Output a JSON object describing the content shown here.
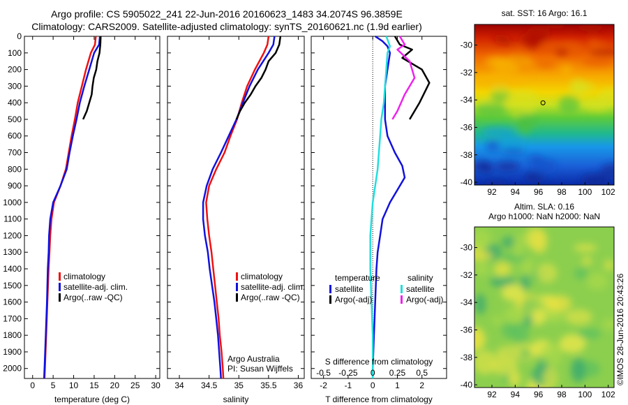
{
  "header": {
    "line1": "Argo profile: CS 5905022_241 22-Jun-2016 20160623_1483 34.2074S 96.3859E",
    "line2": "Climatology: CARS2009. Satellite-adjusted climatology: synTS_20160621.nc (1.9d earlier)"
  },
  "colors": {
    "climatology": "#ee1111",
    "satellite": "#1111dd",
    "argo": "#000000",
    "satellite_s": "#22dddd",
    "argo_s": "#ee22ee"
  },
  "chart_data": [
    {
      "id": "temperature",
      "type": "line",
      "xlabel": "temperature (deg C)",
      "xlim": [
        -2,
        31
      ],
      "ylim": [
        0,
        2060
      ],
      "y_inverted": true,
      "xticks": [
        0,
        5,
        10,
        15,
        20,
        25,
        30
      ],
      "yticks": [
        0,
        100,
        200,
        300,
        400,
        500,
        600,
        700,
        800,
        900,
        1000,
        1100,
        1200,
        1300,
        1400,
        1500,
        1600,
        1700,
        1800,
        1900,
        2000
      ],
      "legend": [
        "climatology",
        "satellite-adj. clim.",
        "Argo(..raw -QC)"
      ],
      "series": [
        {
          "name": "climatology",
          "color": "#ee1111",
          "points": [
            [
              15.4,
              0
            ],
            [
              15.2,
              50
            ],
            [
              14.2,
              100
            ],
            [
              13,
              200
            ],
            [
              12,
              300
            ],
            [
              11,
              400
            ],
            [
              10.3,
              500
            ],
            [
              9.5,
              600
            ],
            [
              8.8,
              700
            ],
            [
              8.1,
              800
            ],
            [
              6.8,
              900
            ],
            [
              5.2,
              1000
            ],
            [
              4.6,
              1100
            ],
            [
              4.3,
              1200
            ],
            [
              4.1,
              1300
            ],
            [
              3.9,
              1400
            ],
            [
              3.6,
              1600
            ],
            [
              3.3,
              1800
            ],
            [
              3.0,
              2000
            ],
            [
              2.9,
              2060
            ]
          ]
        },
        {
          "name": "satellite-adj. clim.",
          "color": "#1111dd",
          "points": [
            [
              16.4,
              0
            ],
            [
              16.2,
              50
            ],
            [
              15,
              100
            ],
            [
              13.8,
              200
            ],
            [
              12.6,
              300
            ],
            [
              11.5,
              400
            ],
            [
              10.7,
              500
            ],
            [
              9.8,
              600
            ],
            [
              9.0,
              700
            ],
            [
              8.3,
              800
            ],
            [
              6.8,
              900
            ],
            [
              5.0,
              1000
            ],
            [
              4.3,
              1100
            ],
            [
              4.0,
              1200
            ],
            [
              3.9,
              1300
            ],
            [
              3.7,
              1400
            ],
            [
              3.5,
              1600
            ],
            [
              3.2,
              1800
            ],
            [
              2.9,
              2000
            ],
            [
              2.8,
              2060
            ]
          ]
        },
        {
          "name": "Argo(..raw -QC)",
          "color": "#000000",
          "points": [
            [
              16.6,
              0
            ],
            [
              16.5,
              50
            ],
            [
              16.3,
              100
            ],
            [
              15.8,
              150
            ],
            [
              15.5,
              200
            ],
            [
              14.9,
              250
            ],
            [
              14.6,
              300
            ],
            [
              14.4,
              350
            ],
            [
              13.8,
              400
            ],
            [
              13.2,
              450
            ],
            [
              12.3,
              500
            ]
          ]
        }
      ]
    },
    {
      "id": "salinity",
      "type": "line",
      "xlabel": "salinity",
      "xlim": [
        33.8,
        36.1
      ],
      "ylim": [
        0,
        2060
      ],
      "y_inverted": true,
      "xticks": [
        34,
        34.5,
        35,
        35.5,
        36
      ],
      "legend": [
        "climatology",
        "satellite-adj. clim.",
        "Argo(..raw -QC)"
      ],
      "notes": [
        "Argo Australia",
        "PI: Susan Wijffels"
      ],
      "series": [
        {
          "name": "climatology",
          "color": "#ee1111",
          "points": [
            [
              35.5,
              0
            ],
            [
              35.48,
              50
            ],
            [
              35.42,
              100
            ],
            [
              35.27,
              200
            ],
            [
              35.14,
              300
            ],
            [
              35.05,
              400
            ],
            [
              34.97,
              500
            ],
            [
              34.86,
              600
            ],
            [
              34.76,
              700
            ],
            [
              34.62,
              800
            ],
            [
              34.5,
              900
            ],
            [
              34.45,
              1000
            ],
            [
              34.47,
              1100
            ],
            [
              34.5,
              1200
            ],
            [
              34.54,
              1300
            ],
            [
              34.57,
              1400
            ],
            [
              34.6,
              1500
            ],
            [
              34.63,
              1600
            ],
            [
              34.66,
              1700
            ],
            [
              34.68,
              1800
            ],
            [
              34.71,
              1900
            ],
            [
              34.73,
              2000
            ],
            [
              34.74,
              2060
            ]
          ]
        },
        {
          "name": "satellite-adj. clim.",
          "color": "#1111dd",
          "points": [
            [
              35.6,
              0
            ],
            [
              35.58,
              50
            ],
            [
              35.5,
              100
            ],
            [
              35.32,
              200
            ],
            [
              35.18,
              300
            ],
            [
              35.07,
              400
            ],
            [
              34.96,
              500
            ],
            [
              34.83,
              600
            ],
            [
              34.7,
              700
            ],
            [
              34.56,
              800
            ],
            [
              34.46,
              900
            ],
            [
              34.4,
              1000
            ],
            [
              34.4,
              1100
            ],
            [
              34.43,
              1200
            ],
            [
              34.48,
              1300
            ],
            [
              34.51,
              1400
            ],
            [
              34.55,
              1500
            ],
            [
              34.59,
              1600
            ],
            [
              34.62,
              1700
            ],
            [
              34.65,
              1800
            ],
            [
              34.67,
              1900
            ],
            [
              34.69,
              2000
            ],
            [
              34.7,
              2060
            ]
          ]
        },
        {
          "name": "Argo(..raw -QC)",
          "color": "#000000",
          "points": [
            [
              35.7,
              0
            ],
            [
              35.68,
              50
            ],
            [
              35.62,
              100
            ],
            [
              35.5,
              150
            ],
            [
              35.45,
              200
            ],
            [
              35.38,
              250
            ],
            [
              35.28,
              300
            ],
            [
              35.2,
              350
            ],
            [
              35.1,
              400
            ],
            [
              35.02,
              450
            ],
            [
              34.96,
              500
            ]
          ]
        }
      ]
    },
    {
      "id": "differences",
      "type": "line",
      "xlabel": "T difference from climatology",
      "xlabel2": "S difference from climatology",
      "xlim": [
        -2.5,
        3.0
      ],
      "ylim": [
        0,
        2060
      ],
      "y_inverted": true,
      "xticks": [
        -2,
        -1,
        0,
        1,
        2
      ],
      "xticks2_labels": [
        "-0.5",
        "-0.25",
        "0",
        "0.25",
        "0.5"
      ],
      "xticks2_pos": [
        -2,
        -1,
        0,
        1,
        2
      ],
      "legend_headings": [
        "temperature",
        "salinity"
      ],
      "legend": [
        "satellite",
        "Argo(-adj)",
        "satellite",
        "Argo(-adj)"
      ],
      "series": [
        {
          "name": "satellite",
          "color": "#1111dd",
          "points": [
            [
              0.1,
              0
            ],
            [
              0.4,
              30
            ],
            [
              0.6,
              60
            ],
            [
              0.7,
              100
            ],
            [
              0.6,
              200
            ],
            [
              0.5,
              300
            ],
            [
              0.5,
              400
            ],
            [
              0.5,
              500
            ],
            [
              0.6,
              600
            ],
            [
              0.9,
              700
            ],
            [
              1.2,
              780
            ],
            [
              1.3,
              850
            ],
            [
              1.1,
              900
            ],
            [
              0.7,
              1000
            ],
            [
              0.4,
              1100
            ],
            [
              0.3,
              1200
            ],
            [
              0.2,
              1300
            ],
            [
              0.15,
              1400
            ],
            [
              0.1,
              1600
            ],
            [
              0.05,
              1800
            ],
            [
              0.0,
              2000
            ],
            [
              0.0,
              2060
            ]
          ]
        },
        {
          "name": "Argo(-adj)",
          "color": "#000000",
          "points": [
            [
              0.9,
              0
            ],
            [
              1.1,
              50
            ],
            [
              1.6,
              80
            ],
            [
              1.2,
              130
            ],
            [
              2.0,
              200
            ],
            [
              2.3,
              280
            ],
            [
              1.9,
              400
            ],
            [
              1.5,
              500
            ]
          ]
        },
        {
          "name": "satellite",
          "color": "#22dddd",
          "points": [
            [
              0.55,
              0
            ],
            [
              0.7,
              60
            ],
            [
              0.6,
              100
            ],
            [
              0.55,
              200
            ],
            [
              0.5,
              300
            ],
            [
              0.45,
              400
            ],
            [
              0.35,
              500
            ],
            [
              0.3,
              600
            ],
            [
              0.25,
              700
            ],
            [
              0.2,
              800
            ],
            [
              0.1,
              900
            ],
            [
              0.0,
              1000
            ],
            [
              -0.05,
              1100
            ],
            [
              -0.1,
              1200
            ],
            [
              -0.1,
              1300
            ],
            [
              -0.1,
              1400
            ],
            [
              -0.05,
              1600
            ],
            [
              0.0,
              1800
            ],
            [
              0.0,
              2000
            ],
            [
              0.0,
              2060
            ]
          ]
        },
        {
          "name": "Argo(-adj)",
          "color": "#ee22ee",
          "points": [
            [
              1.1,
              0
            ],
            [
              1.3,
              50
            ],
            [
              1.0,
              80
            ],
            [
              1.5,
              150
            ],
            [
              1.7,
              250
            ],
            [
              1.3,
              350
            ],
            [
              1.0,
              450
            ],
            [
              0.8,
              500
            ]
          ]
        }
      ]
    },
    {
      "id": "sst-map",
      "type": "heatmap",
      "title": "sat. SST: 16 Argo: 16.1",
      "xlim": [
        90.5,
        102.5
      ],
      "ylim": [
        -40.2,
        -28.5
      ],
      "xticks": [
        92,
        94,
        96,
        98,
        100,
        102
      ],
      "yticks": [
        -30,
        -32,
        -34,
        -36,
        -38,
        -40
      ],
      "marker": [
        96.39,
        -34.21
      ]
    },
    {
      "id": "sla-map",
      "type": "heatmap",
      "title_line1": "Altim. SLA: 0.16",
      "title_line2": "Argo h1000: NaN h2000: NaN",
      "xlim": [
        90.5,
        102.5
      ],
      "ylim": [
        -40.2,
        -28.5
      ],
      "xticks": [
        92,
        94,
        96,
        98,
        100,
        102
      ],
      "yticks": [
        -30,
        -32,
        -34,
        -36,
        -38,
        -40
      ]
    }
  ],
  "credit": "©IMOS 28-Jun-2016 20:43:26"
}
